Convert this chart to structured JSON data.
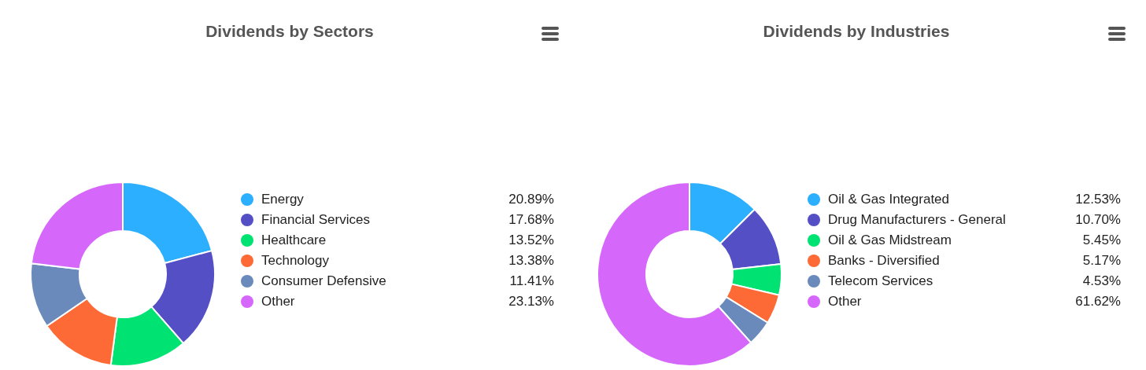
{
  "chart_data": [
    {
      "type": "donut",
      "title": "Dividends by Sectors",
      "categories": [
        "Energy",
        "Financial Services",
        "Healthcare",
        "Technology",
        "Consumer Defensive",
        "Other"
      ],
      "values": [
        20.89,
        17.68,
        13.52,
        13.38,
        11.41,
        23.13
      ],
      "colors": [
        "#2caffe",
        "#544fc5",
        "#00e272",
        "#fe6a35",
        "#6b8abc",
        "#d568fb"
      ],
      "value_labels": [
        "20.89%",
        "17.68%",
        "13.52%",
        "13.38%",
        "11.41%",
        "23.13%"
      ],
      "legend": "right"
    },
    {
      "type": "donut",
      "title": "Dividends by Industries",
      "categories": [
        "Oil & Gas Integrated",
        "Drug Manufacturers - General",
        "Oil & Gas Midstream",
        "Banks - Diversified",
        "Telecom Services",
        "Other"
      ],
      "values": [
        12.53,
        10.7,
        5.45,
        5.17,
        4.53,
        61.62
      ],
      "colors": [
        "#2caffe",
        "#544fc5",
        "#00e272",
        "#fe6a35",
        "#6b8abc",
        "#d568fb"
      ],
      "value_labels": [
        "12.53%",
        "10.70%",
        "5.45%",
        "5.17%",
        "4.53%",
        "61.62%"
      ],
      "legend": "right"
    }
  ]
}
